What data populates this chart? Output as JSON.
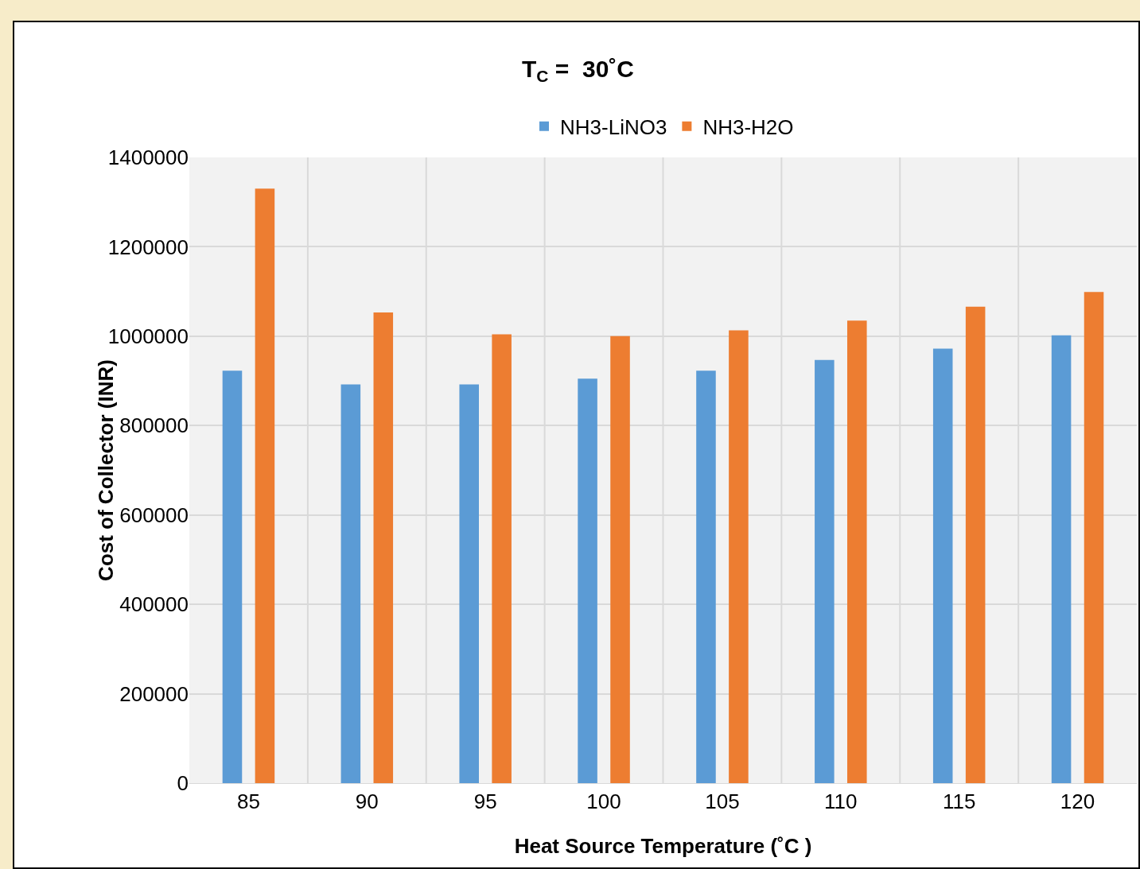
{
  "chart_data": {
    "type": "bar",
    "title": "T$_{C}$ =  30˚C",
    "xlabel": "Heat Source Temperature (˚C )",
    "ylabel": "Cost of Collector (INR)",
    "categories": [
      "85",
      "90",
      "95",
      "100",
      "105",
      "110",
      "115",
      "120"
    ],
    "series": [
      {
        "name": "NH3-LiNO3",
        "color": "#5b9bd5",
        "values": [
          923000,
          892000,
          892000,
          905000,
          923000,
          947000,
          972000,
          1002000
        ]
      },
      {
        "name": "NH3-H2O",
        "color": "#ed7d31",
        "values": [
          1330000,
          1053000,
          1004000,
          1000000,
          1013000,
          1035000,
          1066000,
          1099000
        ]
      }
    ],
    "ylim": [
      0,
      1400000
    ],
    "yticks": [
      0,
      200000,
      400000,
      600000,
      800000,
      1000000,
      1200000,
      1400000
    ],
    "grid": true,
    "legend": "top"
  }
}
